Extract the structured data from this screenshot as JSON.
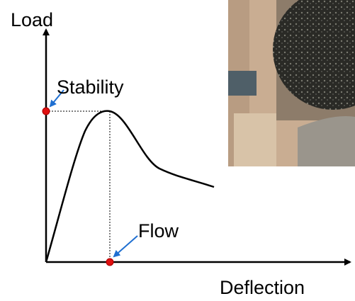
{
  "axes": {
    "y_label": "Load",
    "x_label": "Deflection"
  },
  "annotations": {
    "stability": "Stability",
    "flow": "Flow"
  }
}
